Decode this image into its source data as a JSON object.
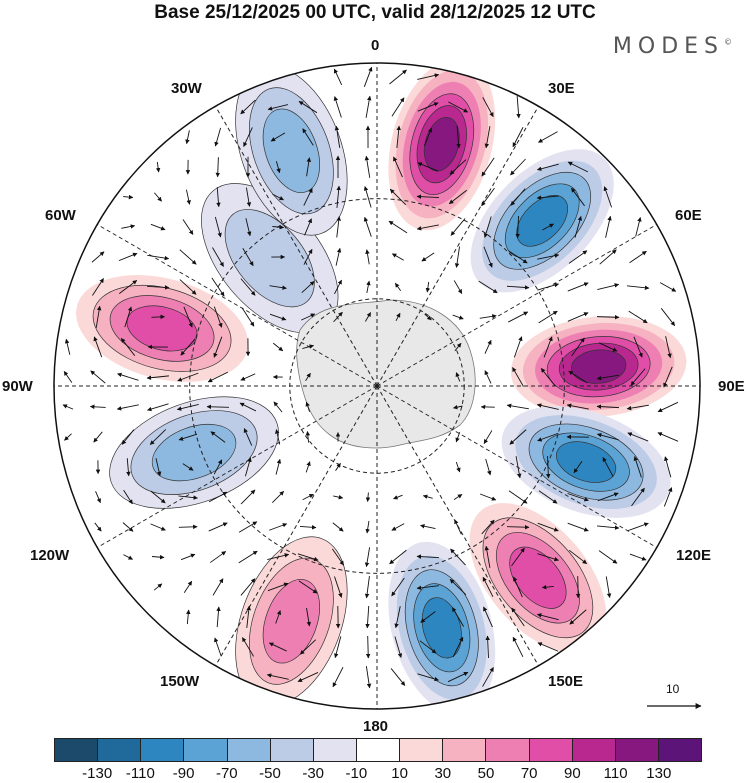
{
  "title": "Base 25/12/2025 00 UTC, valid 28/12/2025 12 UTC",
  "brand": "MODES",
  "brand_mark": "©",
  "longitude_labels": {
    "lon_0": "0",
    "lon_30e": "30E",
    "lon_60e": "60E",
    "lon_90e": "90E",
    "lon_120e": "120E",
    "lon_150e": "150E",
    "lon_180": "180",
    "lon_150w": "150W",
    "lon_120w": "120W",
    "lon_90w": "90W",
    "lon_60w": "60W",
    "lon_30w": "30W"
  },
  "reference_vector": "10",
  "colorbar": {
    "colors": [
      "#1c4a6b",
      "#1f6a9b",
      "#2e86c0",
      "#5aa3d4",
      "#8db8e0",
      "#bccbe6",
      "#e3e2f1",
      "#ffffff",
      "#fbd9d9",
      "#f6b2c1",
      "#ee7fb2",
      "#e04ea8",
      "#b8288f",
      "#86187f",
      "#5d1478"
    ],
    "tick_labels": [
      "-130",
      "-110",
      "-90",
      "-70",
      "-50",
      "-30",
      "-10",
      "10",
      "30",
      "50",
      "70",
      "90",
      "110",
      "130"
    ]
  },
  "chart_data": {
    "type": "polar-stereographic-map",
    "projection": "south-polar",
    "field": "anomaly contours with wind vectors",
    "anomaly_centers": [
      {
        "longitude": 15,
        "latitude": -45,
        "value": 120
      },
      {
        "longitude": 45,
        "latitude": -48,
        "value": -110
      },
      {
        "longitude": 85,
        "latitude": -50,
        "value": 125
      },
      {
        "longitude": 110,
        "latitude": -50,
        "value": -110
      },
      {
        "longitude": 140,
        "latitude": -45,
        "value": 80
      },
      {
        "longitude": 165,
        "latitude": -45,
        "value": -100
      },
      {
        "longitude": -160,
        "latitude": -45,
        "value": 70
      },
      {
        "longitude": -110,
        "latitude": -55,
        "value": -55
      },
      {
        "longitude": -75,
        "latitude": -50,
        "value": 75
      },
      {
        "longitude": -40,
        "latitude": -60,
        "value": -40
      },
      {
        "longitude": -20,
        "latitude": -45,
        "value": -60
      }
    ]
  }
}
